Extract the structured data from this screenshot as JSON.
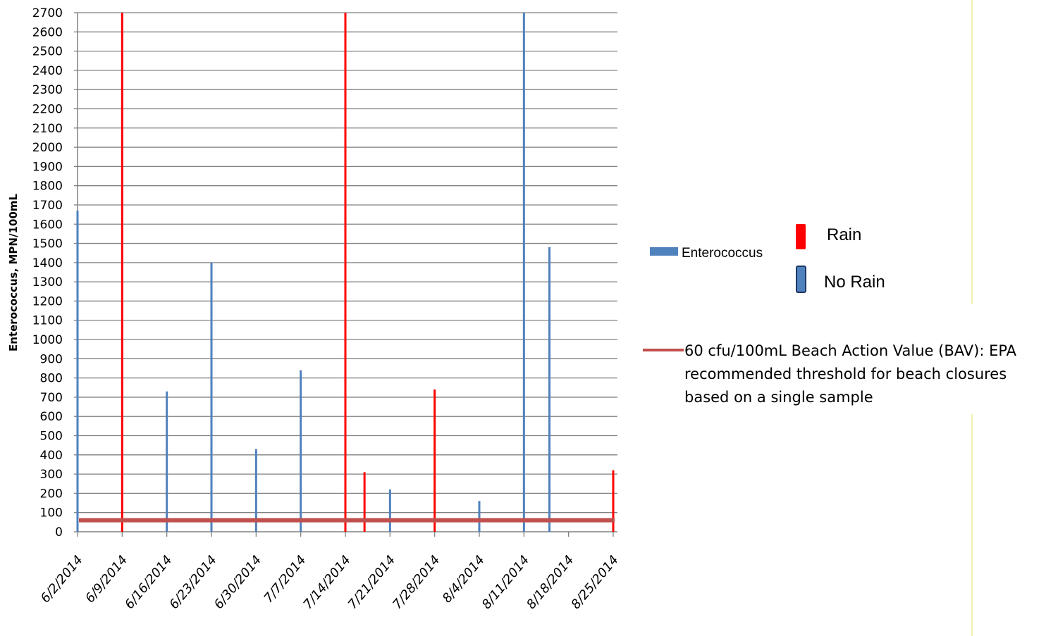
{
  "chart_data": {
    "type": "bar",
    "title": "",
    "xlabel": "",
    "ylabel": "Enterococcus,  MPN/100mL",
    "ylim": [
      0,
      2700
    ],
    "y_ticks": [
      0,
      100,
      200,
      300,
      400,
      500,
      600,
      700,
      800,
      900,
      1000,
      1100,
      1200,
      1300,
      1400,
      1500,
      1600,
      1700,
      1800,
      1900,
      2000,
      2100,
      2200,
      2300,
      2400,
      2500,
      2600,
      2700
    ],
    "x_tick_labels": [
      "6/2/2014",
      "6/9/2014",
      "6/16/2014",
      "6/23/2014",
      "6/30/2014",
      "7/7/2014",
      "7/14/2014",
      "7/21/2014",
      "7/28/2014",
      "8/4/2014",
      "8/11/2014",
      "8/18/2014",
      "8/25/2014"
    ],
    "x_range": [
      "6/2/2014",
      "8/25/2014"
    ],
    "grid": true,
    "series": [
      {
        "name": "Enterococcus",
        "points": [
          {
            "date": "6/2/2014",
            "value": 1670,
            "condition": "No Rain"
          },
          {
            "date": "6/9/2014",
            "value": 2700,
            "condition": "Rain"
          },
          {
            "date": "6/16/2014",
            "value": 730,
            "condition": "No Rain"
          },
          {
            "date": "6/23/2014",
            "value": 1400,
            "condition": "No Rain"
          },
          {
            "date": "6/30/2014",
            "value": 430,
            "condition": "No Rain"
          },
          {
            "date": "7/7/2014",
            "value": 840,
            "condition": "No Rain"
          },
          {
            "date": "7/14/2014",
            "value": 2700,
            "condition": "Rain"
          },
          {
            "date": "7/17/2014",
            "value": 310,
            "condition": "Rain"
          },
          {
            "date": "7/21/2014",
            "value": 220,
            "condition": "No Rain"
          },
          {
            "date": "7/28/2014",
            "value": 740,
            "condition": "Rain"
          },
          {
            "date": "8/4/2014",
            "value": 160,
            "condition": "No Rain"
          },
          {
            "date": "8/11/2014",
            "value": 2700,
            "condition": "No Rain"
          },
          {
            "date": "8/15/2014",
            "value": 1480,
            "condition": "No Rain"
          },
          {
            "date": "8/25/2014",
            "value": 320,
            "condition": "Rain"
          }
        ]
      }
    ],
    "threshold": {
      "value": 60,
      "label_lines": [
        "60 cfu/100mL Beach Action Value (BAV): EPA",
        "recommended threshold for beach closures",
        "based on a single sample"
      ]
    },
    "legend": {
      "series_label": "Enterococcus",
      "rain_label": "Rain",
      "no_rain_label": "No Rain",
      "placement": "right"
    },
    "colors": {
      "no_rain": "#4f81bd",
      "rain": "#ff0000",
      "threshold": "#c0504d",
      "grid": "#808080",
      "axis": "#808080"
    }
  }
}
